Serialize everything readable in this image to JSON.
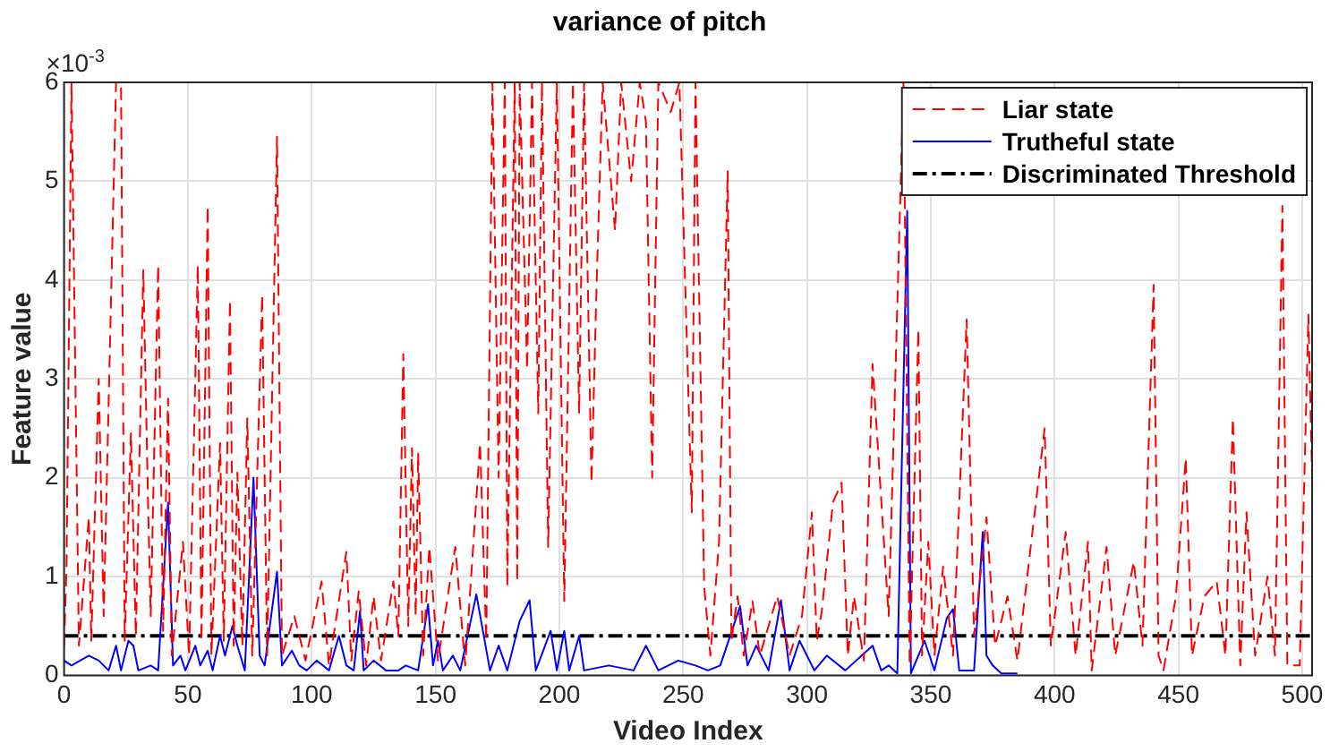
{
  "chart_data": {
    "type": "line",
    "title": "variance of pitch",
    "xlabel": "Video Index",
    "ylabel": "Feature value",
    "annotations": [
      "×10$^{-3}$"
    ],
    "xlim": [
      0,
      504
    ],
    "xticks": [
      0,
      50,
      100,
      150,
      200,
      250,
      300,
      350,
      400,
      450,
      500
    ],
    "ylim": [
      0,
      6
    ],
    "yticks": [
      0,
      1,
      2,
      3,
      4,
      5,
      6
    ],
    "grid": true,
    "legend": "top right",
    "marker": "none",
    "series": [
      {
        "name": "Liar state",
        "color": "#ff0000",
        "line_style": "dashed",
        "x": [
          0,
          1,
          3,
          6,
          10,
          11,
          14,
          16,
          21,
          23,
          24.5,
          27,
          29,
          32,
          34,
          35,
          38,
          40,
          42,
          43.5,
          48,
          50.5,
          54,
          55.5,
          58,
          59.5,
          63,
          64.5,
          67,
          68.5,
          70,
          72,
          74,
          76,
          80,
          82,
          86,
          88,
          93,
          97.5,
          104,
          107,
          114,
          116,
          119,
          122,
          125,
          128,
          133,
          135,
          137,
          139,
          140.5,
          142,
          143,
          145,
          147.5,
          151,
          158,
          162,
          168,
          170.5,
          173,
          175.5,
          178,
          179,
          182,
          183,
          184,
          187,
          189,
          191.5,
          193,
          195.5,
          199,
          202,
          205.5,
          208,
          210,
          213,
          215,
          217.5,
          222.5,
          225,
          229,
          232.5,
          235,
          237.5,
          240,
          245,
          248.5,
          253.5,
          255,
          258.5,
          261,
          264.5,
          268,
          269.5,
          272,
          274.5,
          278,
          281,
          288,
          293,
          298,
          302,
          304,
          306,
          310.5,
          314,
          316.5,
          319,
          323,
          326.5,
          333,
          339,
          341.5,
          345,
          346.5,
          349,
          351.5,
          355,
          359,
          364.5,
          367.5,
          372.5,
          376,
          381,
          385,
          392,
          396,
          398.5,
          404.5,
          408.5,
          413.5,
          415,
          421,
          424.5,
          432,
          435.5,
          440,
          442,
          444,
          449,
          453,
          455.5,
          460.5,
          465.5,
          469,
          472,
          475,
          477.5,
          481,
          486,
          489,
          492,
          494,
          499,
          502.5,
          504
        ],
        "values": [
          0.3,
          1.1,
          6,
          0.3,
          1.6,
          0.35,
          3.0,
          0.6,
          6,
          6,
          0.35,
          2.45,
          0.4,
          4.1,
          1.65,
          0.6,
          4.15,
          0.45,
          2.8,
          0.2,
          1.35,
          0.2,
          4.15,
          0.35,
          4.75,
          0.2,
          2.35,
          0.35,
          3.8,
          0.3,
          2.05,
          0.3,
          2.6,
          0.2,
          3.85,
          0.2,
          5.45,
          0.2,
          0.6,
          0.15,
          0.95,
          0.1,
          1.25,
          0.15,
          0.85,
          0.1,
          0.8,
          0.15,
          0.95,
          0.4,
          3.25,
          0.5,
          2.3,
          0.6,
          2.25,
          0.2,
          1.3,
          0.15,
          1.3,
          0.1,
          2.35,
          0.35,
          6,
          2.0,
          6,
          0.9,
          6,
          0.95,
          6,
          3.1,
          6,
          2.65,
          6,
          1.3,
          6,
          0.75,
          6,
          2.65,
          6,
          1.95,
          3.9,
          6,
          4.5,
          6,
          5.0,
          6,
          5.6,
          2.0,
          6,
          5.7,
          6,
          1.65,
          6,
          0.9,
          0.2,
          1.35,
          5.1,
          0.35,
          0.8,
          0.2,
          0.75,
          0.2,
          0.8,
          0.2,
          0.6,
          1.65,
          0.35,
          0.65,
          1.75,
          1.95,
          0.2,
          0.8,
          0.15,
          3.15,
          0.6,
          6,
          0.1,
          3.5,
          0.2,
          1.35,
          0.2,
          1.1,
          0.2,
          3.6,
          0.4,
          1.6,
          0.3,
          0.8,
          0.15,
          1.65,
          2.5,
          0.3,
          1.45,
          0.2,
          1.35,
          0.05,
          1.3,
          0.2,
          1.15,
          0.3,
          3.95,
          0.2,
          0.05,
          0.8,
          2.2,
          0.2,
          0.8,
          0.95,
          0.2,
          2.6,
          0.1,
          1.65,
          0.2,
          1.0,
          0.2,
          4.75,
          0.1,
          0.1,
          3.65,
          2.0
        ]
      },
      {
        "name": "Trutheful state",
        "color": "#0000ff",
        "line_style": "solid",
        "x": [
          0,
          3,
          10,
          14,
          18,
          21,
          23,
          26,
          28,
          30,
          35,
          38,
          42,
          44,
          47,
          49,
          53,
          55,
          58,
          60,
          63,
          65,
          68,
          70,
          73,
          76.5,
          79,
          81,
          86,
          88,
          92,
          95,
          98,
          102,
          107,
          111,
          114,
          117,
          119.5,
          121,
          125,
          130,
          135,
          138,
          143,
          147,
          149,
          151,
          153,
          157,
          160,
          166.5,
          172,
          175.5,
          179,
          184,
          188,
          190.5,
          196.5,
          199,
          202,
          204,
          208,
          210,
          220,
          230,
          235,
          240,
          248,
          255,
          260,
          265,
          273,
          276,
          279.5,
          284.5,
          289.5,
          293,
          297,
          303,
          308,
          315.5,
          326.5,
          330,
          333,
          336.5,
          340.5,
          342,
          347.5,
          351.5,
          356.5,
          359,
          361.5,
          367.5,
          371,
          372.5,
          375,
          378.5,
          385
        ],
        "values": [
          0.15,
          0.1,
          0.2,
          0.15,
          0.05,
          0.3,
          0.05,
          0.35,
          0.3,
          0.05,
          0.1,
          0.05,
          1.75,
          0.1,
          0.2,
          0.05,
          0.3,
          0.1,
          0.25,
          0.05,
          0.4,
          0.2,
          0.5,
          0.3,
          0.05,
          2.0,
          0.2,
          0.1,
          1.05,
          0.1,
          0.25,
          0.1,
          0.05,
          0.15,
          0.05,
          0.4,
          0.1,
          0.05,
          0.65,
          0.05,
          0.15,
          0.05,
          0.05,
          0.1,
          0.05,
          0.72,
          0.1,
          0.35,
          0.05,
          0.2,
          0.05,
          0.82,
          0.05,
          0.3,
          0.05,
          0.55,
          0.76,
          0.05,
          0.45,
          0.05,
          0.45,
          0.05,
          0.4,
          0.05,
          0.1,
          0.05,
          0.3,
          0.05,
          0.15,
          0.1,
          0.05,
          0.1,
          0.7,
          0.1,
          0.3,
          0.05,
          0.76,
          0.05,
          0.35,
          0.05,
          0.2,
          0.05,
          0.3,
          0.05,
          0.1,
          0.02,
          4.7,
          0.02,
          0.35,
          0.05,
          0.58,
          0.67,
          0.05,
          0.05,
          1.45,
          0.2,
          0.1,
          0.02,
          0.02
        ]
      },
      {
        "name": "Discriminated Threshold",
        "color": "#000000",
        "line_style": "dashdot",
        "x": [
          0,
          504
        ],
        "values": [
          0.4,
          0.4
        ]
      }
    ]
  }
}
